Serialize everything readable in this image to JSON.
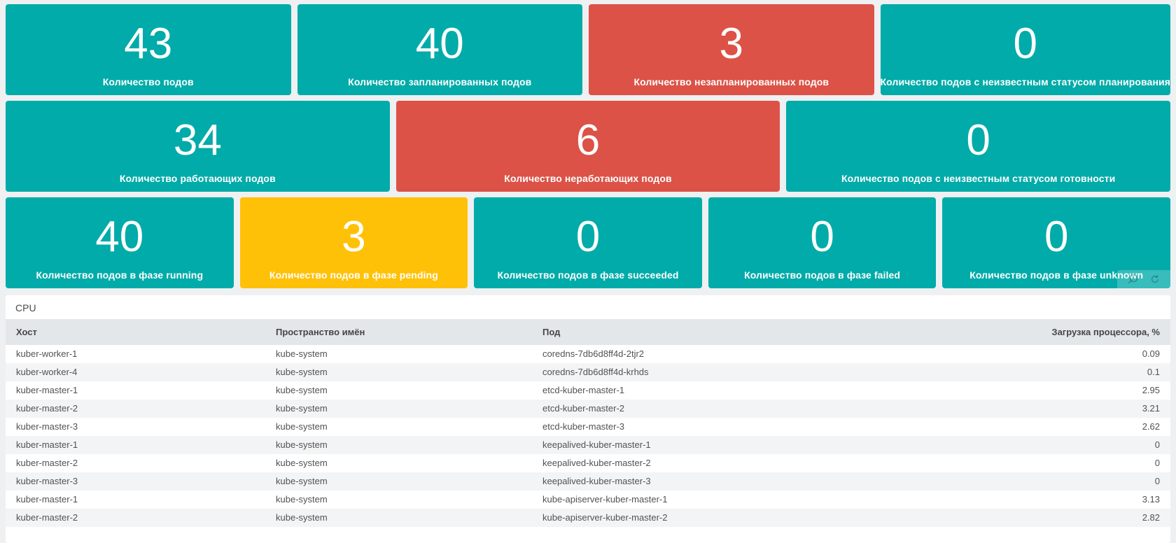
{
  "colors": {
    "teal": "#00aba9",
    "red": "#dc5246",
    "yellow": "#ffc107",
    "page_background": "#eef0f2",
    "table_header_background": "#e3e7ea",
    "table_stripe_background": "#f2f4f6"
  },
  "stat_rows": [
    {
      "panels": [
        {
          "value": "43",
          "label": "Количество подов",
          "color": "teal"
        },
        {
          "value": "40",
          "label": "Количество запланированных подов",
          "color": "teal"
        },
        {
          "value": "3",
          "label": "Количество незапланированных подов",
          "color": "red"
        },
        {
          "value": "0",
          "label": "Количество подов с неизвестным статусом планирования",
          "color": "teal"
        }
      ]
    },
    {
      "panels": [
        {
          "value": "34",
          "label": "Количество работающих подов",
          "color": "teal"
        },
        {
          "value": "6",
          "label": "Количество неработающих подов",
          "color": "red"
        },
        {
          "value": "0",
          "label": "Количество подов с неизвестным статусом готовности",
          "color": "teal"
        }
      ]
    },
    {
      "panels": [
        {
          "value": "40",
          "label": "Количество подов в фазе running",
          "color": "teal"
        },
        {
          "value": "3",
          "label": "Количество подов в фазе pending",
          "color": "yellow"
        },
        {
          "value": "0",
          "label": "Количество подов в фазе succeeded",
          "color": "teal"
        },
        {
          "value": "0",
          "label": "Количество подов в фазе failed",
          "color": "teal"
        },
        {
          "value": "0",
          "label": "Количество подов в фазе unknown",
          "color": "teal",
          "hover_controls": {
            "icons": [
              "search-icon",
              "refresh-icon"
            ]
          }
        }
      ]
    }
  ],
  "cpu_table": {
    "title": "CPU",
    "columns": [
      "Хост",
      "Пространство имён",
      "Под",
      "Загрузка процессора, %"
    ],
    "rows": [
      [
        "kuber-worker-1",
        "kube-system",
        "coredns-7db6d8ff4d-2tjr2",
        "0.09"
      ],
      [
        "kuber-worker-4",
        "kube-system",
        "coredns-7db6d8ff4d-krhds",
        "0.1"
      ],
      [
        "kuber-master-1",
        "kube-system",
        "etcd-kuber-master-1",
        "2.95"
      ],
      [
        "kuber-master-2",
        "kube-system",
        "etcd-kuber-master-2",
        "3.21"
      ],
      [
        "kuber-master-3",
        "kube-system",
        "etcd-kuber-master-3",
        "2.62"
      ],
      [
        "kuber-master-1",
        "kube-system",
        "keepalived-kuber-master-1",
        "0"
      ],
      [
        "kuber-master-2",
        "kube-system",
        "keepalived-kuber-master-2",
        "0"
      ],
      [
        "kuber-master-3",
        "kube-system",
        "keepalived-kuber-master-3",
        "0"
      ],
      [
        "kuber-master-1",
        "kube-system",
        "kube-apiserver-kuber-master-1",
        "3.13"
      ],
      [
        "kuber-master-2",
        "kube-system",
        "kube-apiserver-kuber-master-2",
        "2.82"
      ]
    ]
  }
}
